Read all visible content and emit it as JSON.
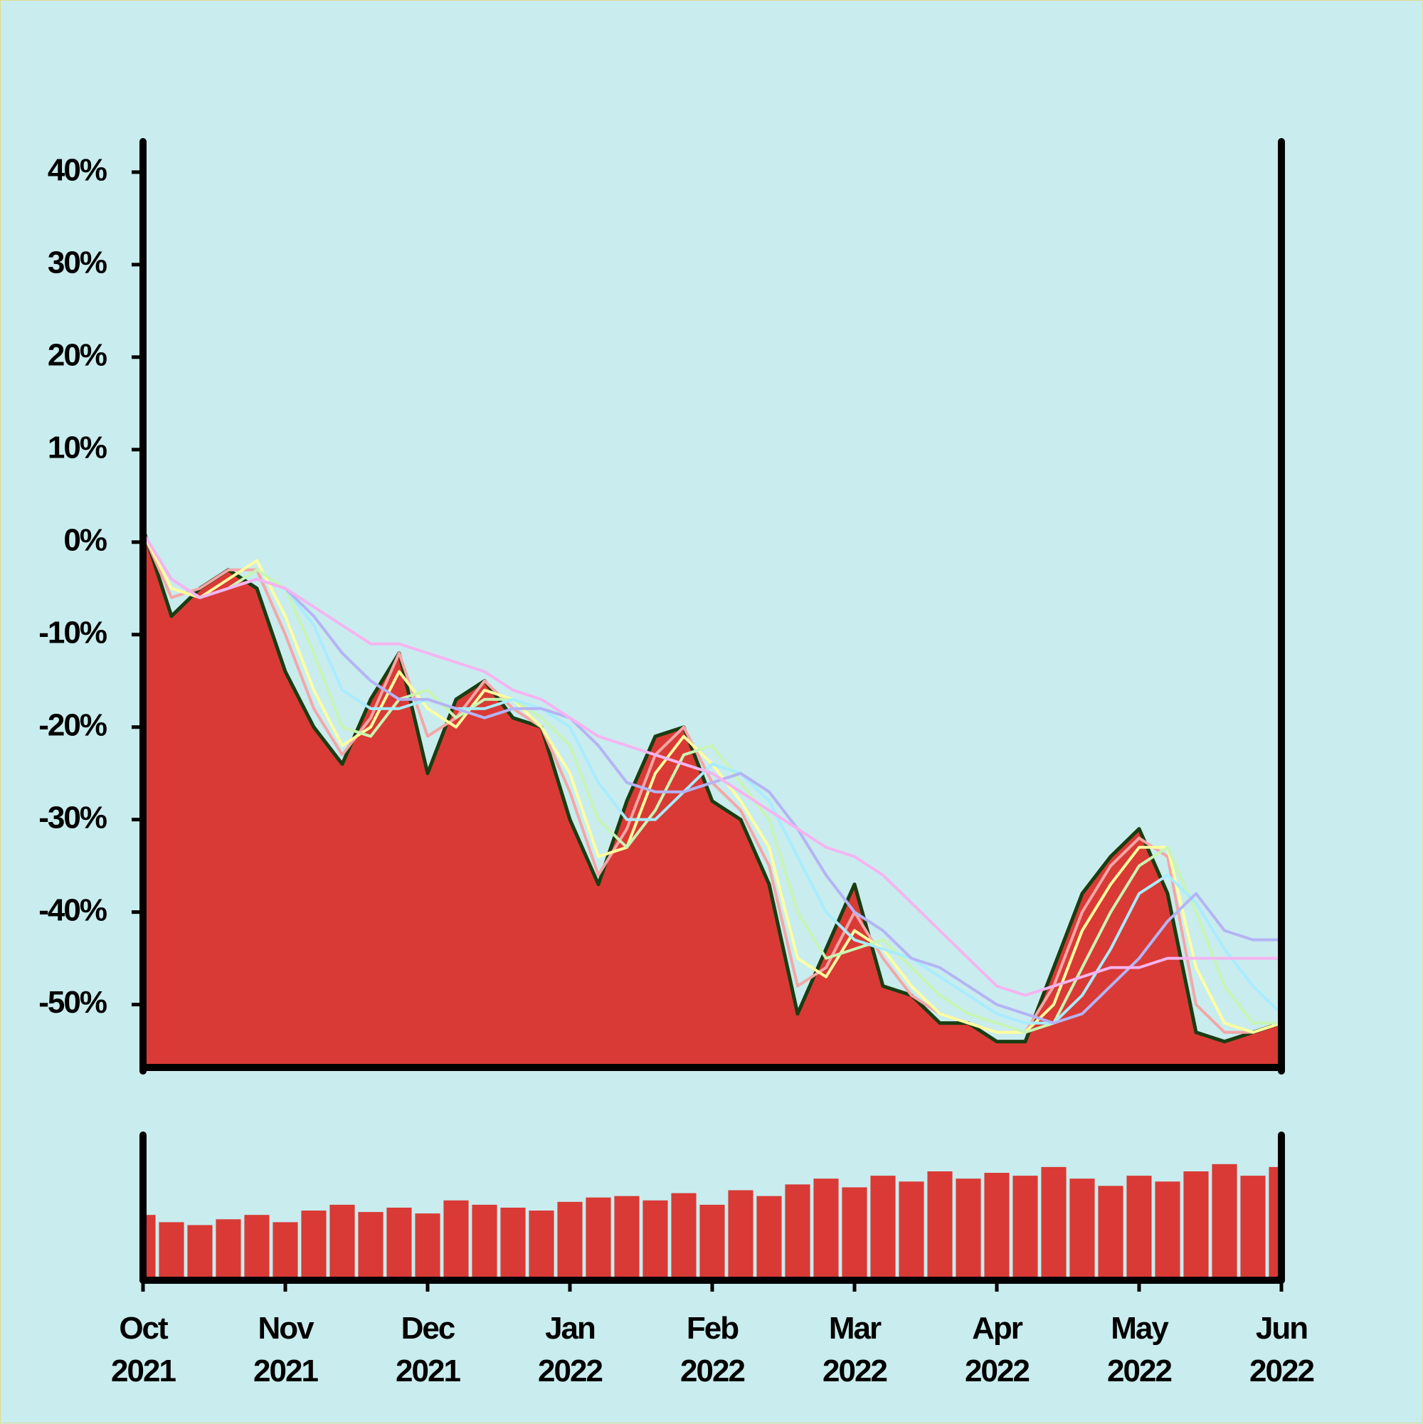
{
  "chart_data": {
    "type": "area",
    "x": [
      0,
      0.2,
      0.4,
      0.6,
      0.8,
      1,
      1.2,
      1.4,
      1.6,
      1.8,
      2,
      2.2,
      2.4,
      2.6,
      2.8,
      3,
      3.2,
      3.4,
      3.6,
      3.8,
      4,
      4.2,
      4.4,
      4.6,
      4.8,
      5,
      5.2,
      5.4,
      5.6,
      5.8,
      6,
      6.2,
      6.4,
      6.6,
      6.8,
      7,
      7.2,
      7.4,
      7.6,
      7.8,
      8
    ],
    "xlim": [
      0,
      8
    ],
    "xticks": [
      {
        "value": 0,
        "label": "Oct 2021"
      },
      {
        "value": 1,
        "label": "Nov 2021"
      },
      {
        "value": 2,
        "label": "Dec 2021"
      },
      {
        "value": 3,
        "label": "Jan 2022"
      },
      {
        "value": 4,
        "label": "Feb 2022"
      },
      {
        "value": 5,
        "label": "Mar 2022"
      },
      {
        "value": 6,
        "label": "Apr 2022"
      },
      {
        "value": 7,
        "label": "May 2022"
      },
      {
        "value": 8,
        "label": "Jun 2022"
      }
    ],
    "ylim": [
      -56.8,
      43.3
    ],
    "yticks": [
      {
        "value": -50,
        "label": "-50%"
      },
      {
        "value": -40,
        "label": "-40%"
      },
      {
        "value": -30,
        "label": "-30%"
      },
      {
        "value": -20,
        "label": "-20%"
      },
      {
        "value": -10,
        "label": "-10%"
      },
      {
        "value": 0,
        "label": "0%"
      },
      {
        "value": 10,
        "label": "10%"
      },
      {
        "value": 20,
        "label": "20%"
      },
      {
        "value": 30,
        "label": "30%"
      },
      {
        "value": 40,
        "label": "40%"
      }
    ],
    "series": [
      {
        "color": "#1a3d12",
        "fill": "#d93a35",
        "values": [
          1.5,
          -8,
          -5,
          -3,
          -5,
          -14,
          -20,
          -24,
          -17,
          -12,
          -25,
          -17,
          -15,
          -19,
          -20,
          -30,
          -37,
          -28,
          -21,
          -20,
          -28,
          -30,
          -37,
          -51,
          -44,
          -37,
          -48,
          -49,
          -52,
          -52,
          -54,
          -54,
          -46,
          -38,
          -34,
          -31,
          -38,
          -53,
          -54,
          -53,
          -52
        ]
      },
      {
        "color": "#f4a6a6",
        "values": [
          1,
          -6,
          -5,
          -3,
          -3,
          -10,
          -18,
          -23,
          -19,
          -12,
          -21,
          -19,
          -15,
          -18,
          -20,
          -27,
          -36,
          -31,
          -23,
          -20,
          -26,
          -29,
          -35,
          -48,
          -46,
          -40,
          -45,
          -49,
          -51,
          -52,
          -53,
          -53,
          -48,
          -40,
          -35,
          -32,
          -34,
          -50,
          -53,
          -53,
          -52
        ]
      },
      {
        "color": "#ffffa0",
        "values": [
          1,
          -5,
          -6,
          -4,
          -2,
          -8,
          -16,
          -22,
          -20,
          -14,
          -18,
          -20,
          -16,
          -17,
          -20,
          -25,
          -34,
          -33,
          -25,
          -21,
          -24,
          -28,
          -33,
          -45,
          -47,
          -42,
          -44,
          -48,
          -51,
          -52,
          -53,
          -53,
          -50,
          -42,
          -37,
          -33,
          -33,
          -46,
          -52,
          -53,
          -52
        ]
      },
      {
        "color": "#c8f5b4",
        "values": [
          1,
          -4,
          -6,
          -5,
          -3,
          -5,
          -12,
          -20,
          -21,
          -17,
          -16,
          -19,
          -17,
          -17,
          -19,
          -22,
          -30,
          -33,
          -29,
          -23,
          -22,
          -26,
          -30,
          -40,
          -45,
          -44,
          -43,
          -46,
          -49,
          -51,
          -52,
          -53,
          -52,
          -46,
          -40,
          -35,
          -33,
          -40,
          -48,
          -52,
          -52
        ]
      },
      {
        "color": "#a8ecff",
        "values": [
          1,
          -4,
          -6,
          -5,
          -4,
          -5,
          -9,
          -16,
          -18,
          -18,
          -17,
          -18,
          -18,
          -17,
          -18,
          -20,
          -26,
          -30,
          -30,
          -27,
          -24,
          -25,
          -28,
          -34,
          -40,
          -43,
          -44,
          -45,
          -47,
          -49,
          -51,
          -52,
          -52,
          -49,
          -44,
          -38,
          -36,
          -39,
          -44,
          -48,
          -51
        ]
      },
      {
        "color": "#b4b4f5",
        "values": [
          1,
          -4,
          -6,
          -5,
          -4,
          -5,
          -8,
          -12,
          -15,
          -17,
          -17,
          -18,
          -19,
          -18,
          -18,
          -19,
          -22,
          -26,
          -27,
          -27,
          -26,
          -25,
          -27,
          -31,
          -36,
          -40,
          -42,
          -45,
          -46,
          -48,
          -50,
          -51,
          -52,
          -51,
          -48,
          -45,
          -41,
          -38,
          -42,
          -43,
          -43
        ]
      },
      {
        "color": "#f5b4f0",
        "values": [
          1,
          -4,
          -6,
          -5,
          -4,
          -5,
          -7,
          -9,
          -11,
          -11,
          -12,
          -13,
          -14,
          -16,
          -17,
          -19,
          -21,
          -22,
          -23,
          -24,
          -25,
          -27,
          -29,
          -31,
          -33,
          -34,
          -36,
          -39,
          -42,
          -45,
          -48,
          -49,
          -48,
          -47,
          -46,
          -46,
          -45,
          -45,
          -45,
          -45,
          -45
        ]
      }
    ],
    "volume": {
      "color": "#d93a35",
      "ylim": [
        0,
        100
      ],
      "values": [
        45,
        40,
        38,
        42,
        45,
        40,
        48,
        52,
        47,
        50,
        46,
        55,
        52,
        50,
        48,
        54,
        57,
        58,
        55,
        60,
        52,
        62,
        58,
        66,
        70,
        64,
        72,
        68,
        75,
        70,
        74,
        72,
        78,
        70,
        65,
        72,
        68,
        75,
        80,
        72,
        78
      ]
    }
  }
}
